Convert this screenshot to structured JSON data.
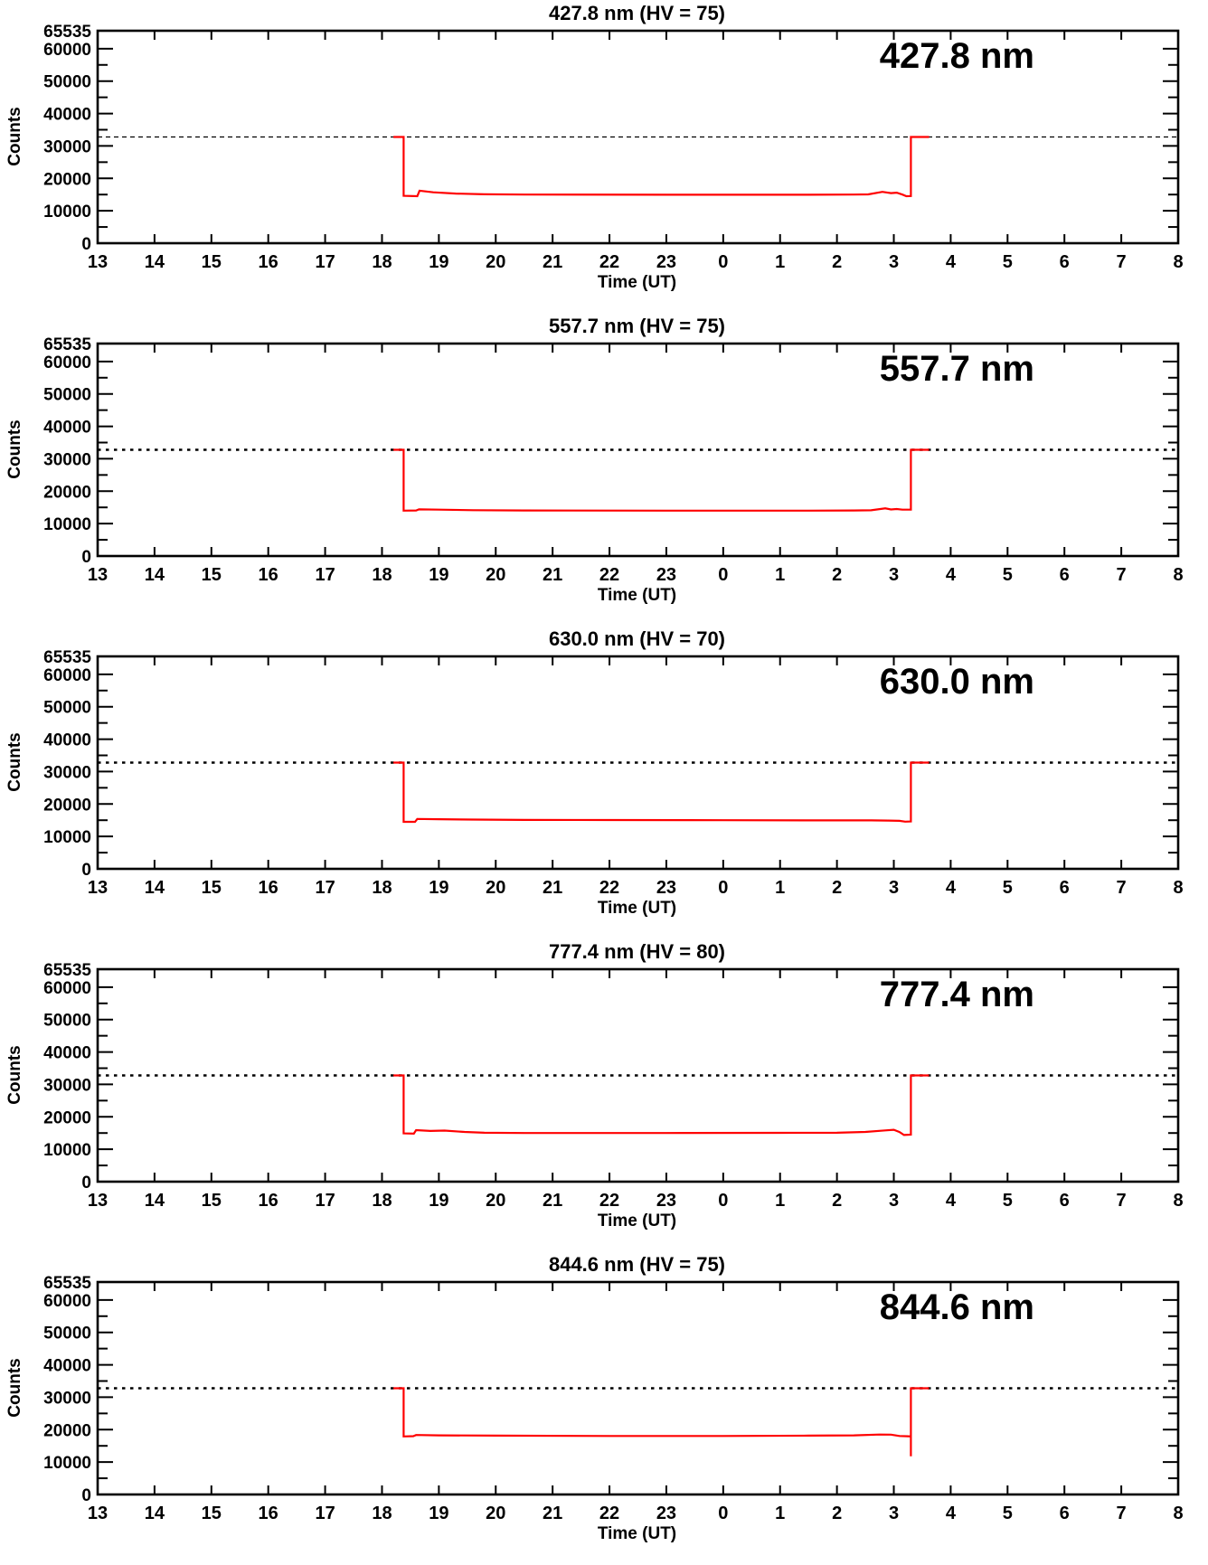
{
  "figure": {
    "background": "#ffffff",
    "axis_color": "#000000",
    "data_line_color": "#ff0000",
    "threshold_color": "#000000"
  },
  "chart_data": [
    {
      "type": "line",
      "title": "427.8 nm (HV = 75)",
      "label": "427.8 nm",
      "xlabel": "Time (UT)",
      "ylabel": "Counts",
      "x_tick_labels": [
        "13",
        "14",
        "15",
        "16",
        "17",
        "18",
        "19",
        "20",
        "21",
        "22",
        "23",
        "0",
        "1",
        "2",
        "3",
        "4",
        "5",
        "6",
        "7",
        "8"
      ],
      "y_ticks": [
        0,
        10000,
        20000,
        30000,
        40000,
        50000,
        60000,
        65535
      ],
      "y_tick_labels": [
        "0",
        "10000",
        "20000",
        "30000",
        "40000",
        "50000",
        "60000",
        "65535"
      ],
      "y_minor_step": 5000,
      "ylim": [
        0,
        65535
      ],
      "grid": false,
      "threshold": 32767,
      "threshold_style": "fine",
      "line_color": "#ff0000",
      "series": [
        {
          "name": "counts",
          "points": [
            [
              5.2,
              32767
            ],
            [
              5.38,
              32767
            ],
            [
              5.38,
              14600
            ],
            [
              5.62,
              14500
            ],
            [
              5.66,
              16200
            ],
            [
              5.9,
              15700
            ],
            [
              6.3,
              15300
            ],
            [
              6.8,
              15100
            ],
            [
              7.5,
              15000
            ],
            [
              10,
              14950
            ],
            [
              12.5,
              14950
            ],
            [
              13.3,
              15000
            ],
            [
              13.55,
              15050
            ],
            [
              13.8,
              15850
            ],
            [
              13.95,
              15450
            ],
            [
              14.05,
              15600
            ],
            [
              14.15,
              15000
            ],
            [
              14.22,
              14500
            ],
            [
              14.3,
              14550
            ],
            [
              14.3,
              32767
            ],
            [
              14.62,
              32767
            ]
          ]
        }
      ]
    },
    {
      "type": "line",
      "title": "557.7 nm (HV = 75)",
      "label": "557.7 nm",
      "xlabel": "Time (UT)",
      "ylabel": "Counts",
      "x_tick_labels": [
        "13",
        "14",
        "15",
        "16",
        "17",
        "18",
        "19",
        "20",
        "21",
        "22",
        "23",
        "0",
        "1",
        "2",
        "3",
        "4",
        "5",
        "6",
        "7",
        "8"
      ],
      "y_ticks": [
        0,
        10000,
        20000,
        30000,
        40000,
        50000,
        60000,
        65535
      ],
      "y_tick_labels": [
        "0",
        "10000",
        "20000",
        "30000",
        "40000",
        "50000",
        "60000",
        "65535"
      ],
      "y_minor_step": 5000,
      "ylim": [
        0,
        65535
      ],
      "grid": false,
      "threshold": 32767,
      "threshold_style": "bold",
      "line_color": "#ff0000",
      "series": [
        {
          "name": "counts",
          "points": [
            [
              5.2,
              32767
            ],
            [
              5.38,
              32767
            ],
            [
              5.38,
              14000
            ],
            [
              5.6,
              14050
            ],
            [
              5.65,
              14400
            ],
            [
              6.0,
              14300
            ],
            [
              6.6,
              14150
            ],
            [
              7.5,
              14050
            ],
            [
              10,
              14000
            ],
            [
              12.5,
              14000
            ],
            [
              13.3,
              14050
            ],
            [
              13.6,
              14100
            ],
            [
              13.85,
              14700
            ],
            [
              13.95,
              14350
            ],
            [
              14.05,
              14500
            ],
            [
              14.15,
              14300
            ],
            [
              14.3,
              14300
            ],
            [
              14.3,
              32767
            ],
            [
              14.62,
              32767
            ]
          ]
        }
      ]
    },
    {
      "type": "line",
      "title": "630.0 nm (HV = 70)",
      "label": "630.0 nm",
      "xlabel": "Time (UT)",
      "ylabel": "Counts",
      "x_tick_labels": [
        "13",
        "14",
        "15",
        "16",
        "17",
        "18",
        "19",
        "20",
        "21",
        "22",
        "23",
        "0",
        "1",
        "2",
        "3",
        "4",
        "5",
        "6",
        "7",
        "8"
      ],
      "y_ticks": [
        0,
        10000,
        20000,
        30000,
        40000,
        50000,
        60000,
        65535
      ],
      "y_tick_labels": [
        "0",
        "10000",
        "20000",
        "30000",
        "40000",
        "50000",
        "60000",
        "65535"
      ],
      "y_minor_step": 5000,
      "ylim": [
        0,
        65535
      ],
      "grid": false,
      "threshold": 32767,
      "threshold_style": "bold",
      "line_color": "#ff0000",
      "series": [
        {
          "name": "counts",
          "points": [
            [
              5.2,
              32767
            ],
            [
              5.38,
              32767
            ],
            [
              5.38,
              14500
            ],
            [
              5.58,
              14500
            ],
            [
              5.62,
              15400
            ],
            [
              6.0,
              15300
            ],
            [
              6.6,
              15200
            ],
            [
              7.5,
              15100
            ],
            [
              9,
              15050
            ],
            [
              11,
              15000
            ],
            [
              13,
              14950
            ],
            [
              13.6,
              14950
            ],
            [
              13.9,
              14900
            ],
            [
              14.1,
              14800
            ],
            [
              14.2,
              14550
            ],
            [
              14.3,
              14600
            ],
            [
              14.3,
              32767
            ],
            [
              14.62,
              32767
            ]
          ]
        }
      ]
    },
    {
      "type": "line",
      "title": "777.4 nm (HV = 80)",
      "label": "777.4 nm",
      "xlabel": "Time (UT)",
      "ylabel": "Counts",
      "x_tick_labels": [
        "13",
        "14",
        "15",
        "16",
        "17",
        "18",
        "19",
        "20",
        "21",
        "22",
        "23",
        "0",
        "1",
        "2",
        "3",
        "4",
        "5",
        "6",
        "7",
        "8"
      ],
      "y_ticks": [
        0,
        10000,
        20000,
        30000,
        40000,
        50000,
        60000,
        65535
      ],
      "y_tick_labels": [
        "0",
        "10000",
        "20000",
        "30000",
        "40000",
        "50000",
        "60000",
        "65535"
      ],
      "y_minor_step": 5000,
      "ylim": [
        0,
        65535
      ],
      "grid": false,
      "threshold": 32767,
      "threshold_style": "bold",
      "line_color": "#ff0000",
      "series": [
        {
          "name": "counts",
          "points": [
            [
              5.2,
              32767
            ],
            [
              5.38,
              32767
            ],
            [
              5.38,
              14900
            ],
            [
              5.56,
              14800
            ],
            [
              5.6,
              15900
            ],
            [
              5.85,
              15650
            ],
            [
              6.1,
              15750
            ],
            [
              6.45,
              15350
            ],
            [
              6.8,
              15100
            ],
            [
              7.5,
              15000
            ],
            [
              10,
              15000
            ],
            [
              12,
              15050
            ],
            [
              13.0,
              15100
            ],
            [
              13.5,
              15350
            ],
            [
              13.85,
              15800
            ],
            [
              14.0,
              16000
            ],
            [
              14.1,
              15300
            ],
            [
              14.18,
              14400
            ],
            [
              14.3,
              14500
            ],
            [
              14.3,
              32767
            ],
            [
              14.62,
              32767
            ]
          ]
        }
      ]
    },
    {
      "type": "line",
      "title": "844.6 nm (HV = 75)",
      "label": "844.6 nm",
      "xlabel": "Time (UT)",
      "ylabel": "Counts",
      "x_tick_labels": [
        "13",
        "14",
        "15",
        "16",
        "17",
        "18",
        "19",
        "20",
        "21",
        "22",
        "23",
        "0",
        "1",
        "2",
        "3",
        "4",
        "5",
        "6",
        "7",
        "8"
      ],
      "y_ticks": [
        0,
        10000,
        20000,
        30000,
        40000,
        50000,
        60000,
        65535
      ],
      "y_tick_labels": [
        "0",
        "10000",
        "20000",
        "30000",
        "40000",
        "50000",
        "60000",
        "65535"
      ],
      "y_minor_step": 5000,
      "ylim": [
        0,
        65535
      ],
      "grid": false,
      "threshold": 32767,
      "threshold_style": "bold",
      "line_color": "#ff0000",
      "series": [
        {
          "name": "counts",
          "points": [
            [
              5.2,
              32767
            ],
            [
              5.38,
              32767
            ],
            [
              5.38,
              17900
            ],
            [
              5.55,
              18000
            ],
            [
              5.6,
              18350
            ],
            [
              6.0,
              18250
            ],
            [
              7,
              18150
            ],
            [
              9,
              18050
            ],
            [
              11,
              18050
            ],
            [
              12.5,
              18150
            ],
            [
              13.3,
              18250
            ],
            [
              13.75,
              18500
            ],
            [
              13.95,
              18450
            ],
            [
              14.1,
              18050
            ],
            [
              14.25,
              17950
            ],
            [
              14.3,
              17900
            ],
            [
              14.3,
              11800
            ],
            [
              14.3,
              32767
            ],
            [
              14.62,
              32767
            ]
          ]
        }
      ]
    }
  ]
}
